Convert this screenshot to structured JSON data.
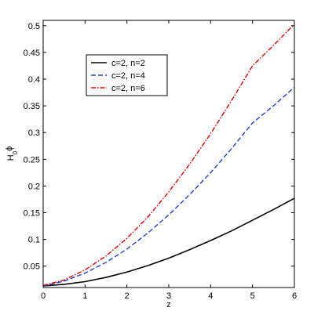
{
  "chart_data": {
    "type": "line",
    "xlabel": "z",
    "ylabel_main": "H",
    "ylabel_sub": "0",
    "ylabel_tail": "ϕ",
    "xlim": [
      0,
      6
    ],
    "ylim": [
      0.01,
      0.51
    ],
    "xticks": [
      0,
      1,
      2,
      3,
      4,
      5,
      6
    ],
    "yticks": [
      0.05,
      0.1,
      0.15,
      0.2,
      0.25,
      0.3,
      0.35,
      0.4,
      0.45,
      0.5
    ],
    "ytick_labels": [
      "0.05",
      "0.1",
      "0.15",
      "0.2",
      "0.25",
      "0.3",
      "0.35",
      "0.4",
      "0.45",
      "0.5"
    ],
    "grid": false,
    "legend_position": "top-left",
    "x": [
      0,
      0.5,
      1,
      1.5,
      2,
      2.5,
      3,
      3.5,
      4,
      4.5,
      5,
      5.5,
      6
    ],
    "series": [
      {
        "name": "c=2, n=2",
        "color": "#000000",
        "dash": "solid",
        "values": [
          0.013,
          0.016,
          0.021,
          0.029,
          0.039,
          0.051,
          0.065,
          0.081,
          0.098,
          0.116,
          0.136,
          0.156,
          0.177
        ]
      },
      {
        "name": "c=2, n=4",
        "color": "#1f3fd8",
        "dash": "dashed",
        "values": [
          0.013,
          0.022,
          0.037,
          0.057,
          0.082,
          0.112,
          0.146,
          0.184,
          0.225,
          0.27,
          0.318,
          0.35,
          0.385
        ]
      },
      {
        "name": "c=2, n=6",
        "color": "#e00000",
        "dash": "dashdot",
        "values": [
          0.014,
          0.024,
          0.043,
          0.069,
          0.102,
          0.142,
          0.189,
          0.241,
          0.298,
          0.36,
          0.425,
          0.463,
          0.503
        ]
      }
    ]
  }
}
